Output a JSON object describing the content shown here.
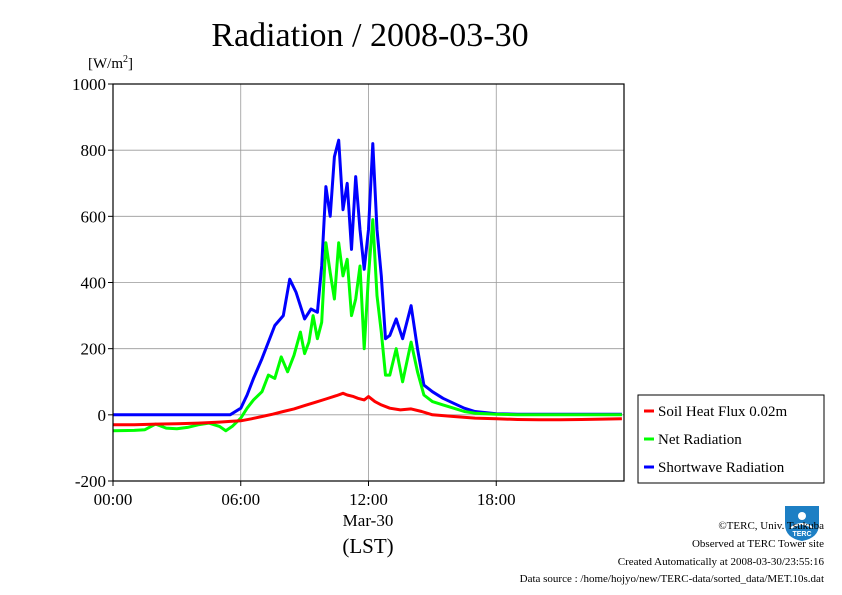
{
  "chart_data": {
    "type": "line",
    "title": "Radiation / 2008-03-30",
    "unit_label": "[W/m2]",
    "unit_base": "[W/m",
    "unit_sup": "2",
    "unit_close": "]",
    "xlabel_date": "Mar-30",
    "xlabel": "(LST)",
    "x_ticks": [
      {
        "hour": 0,
        "label": "00:00"
      },
      {
        "hour": 6,
        "label": "06:00"
      },
      {
        "hour": 12,
        "label": "12:00"
      },
      {
        "hour": 18,
        "label": "18:00"
      }
    ],
    "xlim": [
      0,
      24
    ],
    "ylim": [
      -200,
      1000
    ],
    "y_ticks": [
      -200,
      0,
      200,
      400,
      600,
      800,
      1000
    ],
    "grid": true,
    "legend_position": "right",
    "series": [
      {
        "name": "Soil Heat Flux 0.02m",
        "color": "#ff0000",
        "points": [
          [
            0,
            -30
          ],
          [
            1,
            -30
          ],
          [
            2,
            -28
          ],
          [
            3,
            -27
          ],
          [
            4,
            -25
          ],
          [
            5,
            -22
          ],
          [
            5.5,
            -20
          ],
          [
            6,
            -18
          ],
          [
            6.5,
            -12
          ],
          [
            7,
            -5
          ],
          [
            7.5,
            2
          ],
          [
            8,
            10
          ],
          [
            8.5,
            18
          ],
          [
            9,
            28
          ],
          [
            9.5,
            38
          ],
          [
            10,
            48
          ],
          [
            10.5,
            58
          ],
          [
            10.8,
            65
          ],
          [
            11,
            60
          ],
          [
            11.3,
            55
          ],
          [
            11.5,
            50
          ],
          [
            11.8,
            45
          ],
          [
            12,
            55
          ],
          [
            12.3,
            40
          ],
          [
            12.6,
            30
          ],
          [
            13,
            20
          ],
          [
            13.5,
            15
          ],
          [
            14,
            18
          ],
          [
            14.5,
            10
          ],
          [
            15,
            0
          ],
          [
            16,
            -5
          ],
          [
            17,
            -10
          ],
          [
            18,
            -12
          ],
          [
            19,
            -14
          ],
          [
            20,
            -15
          ],
          [
            21,
            -15
          ],
          [
            22,
            -14
          ],
          [
            23,
            -13
          ],
          [
            23.9,
            -12
          ]
        ]
      },
      {
        "name": "Net Radiation",
        "color": "#00ff00",
        "points": [
          [
            0,
            -48
          ],
          [
            1,
            -47
          ],
          [
            1.5,
            -45
          ],
          [
            2,
            -28
          ],
          [
            2.5,
            -40
          ],
          [
            3,
            -42
          ],
          [
            3.5,
            -38
          ],
          [
            4,
            -30
          ],
          [
            4.5,
            -25
          ],
          [
            5,
            -35
          ],
          [
            5.3,
            -48
          ],
          [
            5.6,
            -35
          ],
          [
            6,
            -10
          ],
          [
            6.3,
            20
          ],
          [
            6.6,
            45
          ],
          [
            7,
            70
          ],
          [
            7.3,
            120
          ],
          [
            7.6,
            110
          ],
          [
            7.9,
            175
          ],
          [
            8.2,
            130
          ],
          [
            8.5,
            180
          ],
          [
            8.8,
            250
          ],
          [
            9,
            185
          ],
          [
            9.2,
            220
          ],
          [
            9.4,
            300
          ],
          [
            9.6,
            230
          ],
          [
            9.8,
            280
          ],
          [
            10,
            520
          ],
          [
            10.2,
            430
          ],
          [
            10.4,
            350
          ],
          [
            10.6,
            520
          ],
          [
            10.8,
            420
          ],
          [
            11,
            470
          ],
          [
            11.2,
            300
          ],
          [
            11.4,
            350
          ],
          [
            11.6,
            450
          ],
          [
            11.8,
            200
          ],
          [
            12,
            420
          ],
          [
            12.2,
            590
          ],
          [
            12.4,
            360
          ],
          [
            12.6,
            250
          ],
          [
            12.8,
            120
          ],
          [
            13,
            120
          ],
          [
            13.3,
            200
          ],
          [
            13.6,
            100
          ],
          [
            14,
            220
          ],
          [
            14.3,
            130
          ],
          [
            14.6,
            60
          ],
          [
            15,
            40
          ],
          [
            15.5,
            30
          ],
          [
            16,
            20
          ],
          [
            16.5,
            10
          ],
          [
            17,
            5
          ],
          [
            18,
            2
          ],
          [
            19,
            0
          ],
          [
            20,
            0
          ],
          [
            21,
            0
          ],
          [
            22,
            0
          ],
          [
            23,
            0
          ],
          [
            23.9,
            0
          ]
        ]
      },
      {
        "name": "Shortwave Radiation",
        "color": "#0000ff",
        "points": [
          [
            0,
            0
          ],
          [
            5,
            0
          ],
          [
            5.5,
            0
          ],
          [
            6,
            20
          ],
          [
            6.3,
            60
          ],
          [
            6.6,
            110
          ],
          [
            7,
            170
          ],
          [
            7.3,
            220
          ],
          [
            7.6,
            270
          ],
          [
            8,
            300
          ],
          [
            8.3,
            410
          ],
          [
            8.6,
            370
          ],
          [
            9,
            290
          ],
          [
            9.3,
            320
          ],
          [
            9.6,
            310
          ],
          [
            9.8,
            450
          ],
          [
            10,
            690
          ],
          [
            10.2,
            600
          ],
          [
            10.4,
            780
          ],
          [
            10.6,
            830
          ],
          [
            10.8,
            620
          ],
          [
            11,
            700
          ],
          [
            11.2,
            500
          ],
          [
            11.4,
            720
          ],
          [
            11.6,
            560
          ],
          [
            11.8,
            440
          ],
          [
            12,
            560
          ],
          [
            12.2,
            820
          ],
          [
            12.4,
            560
          ],
          [
            12.6,
            420
          ],
          [
            12.8,
            230
          ],
          [
            13,
            240
          ],
          [
            13.3,
            290
          ],
          [
            13.6,
            230
          ],
          [
            14,
            330
          ],
          [
            14.3,
            200
          ],
          [
            14.6,
            90
          ],
          [
            15,
            70
          ],
          [
            15.5,
            50
          ],
          [
            16,
            35
          ],
          [
            16.5,
            20
          ],
          [
            17,
            10
          ],
          [
            18,
            3
          ],
          [
            19,
            2
          ],
          [
            20,
            2
          ],
          [
            21,
            2
          ],
          [
            22,
            2
          ],
          [
            23,
            2
          ],
          [
            23.9,
            2
          ]
        ]
      }
    ]
  },
  "credits": {
    "copyright": "©TERC, Univ. Tsukuba",
    "observed": "Observed at TERC Tower site",
    "created": "Created Automatically at 2008-03-30/23:55:16",
    "source": "Data source : /home/hojyo/new/TERC-data/sorted_data/MET.10s.dat"
  },
  "logo": {
    "text": "TERC",
    "color": "#1d7fc4"
  }
}
